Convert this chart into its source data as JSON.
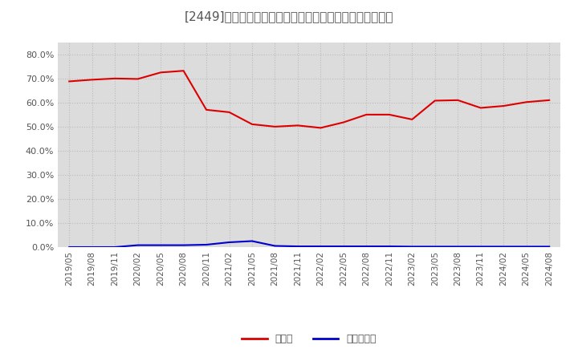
{
  "title": "[2449]　現顔金、有利子負債の総資産に対する比率の推移",
  "x_labels": [
    "2019/05",
    "2019/08",
    "2019/11",
    "2020/02",
    "2020/05",
    "2020/08",
    "2020/11",
    "2021/02",
    "2021/05",
    "2021/08",
    "2021/11",
    "2022/02",
    "2022/05",
    "2022/08",
    "2022/11",
    "2023/02",
    "2023/05",
    "2023/08",
    "2023/11",
    "2024/02",
    "2024/05",
    "2024/08"
  ],
  "cash_ratio": [
    0.688,
    0.695,
    0.7,
    0.698,
    0.725,
    0.732,
    0.57,
    0.56,
    0.51,
    0.5,
    0.505,
    0.495,
    0.518,
    0.55,
    0.55,
    0.53,
    0.608,
    0.61,
    0.578,
    0.586,
    0.602,
    0.61
  ],
  "debt_ratio": [
    0.0,
    0.0,
    0.0,
    0.008,
    0.008,
    0.008,
    0.01,
    0.02,
    0.025,
    0.005,
    0.003,
    0.003,
    0.003,
    0.003,
    0.003,
    0.002,
    0.002,
    0.002,
    0.002,
    0.002,
    0.002,
    0.002
  ],
  "cash_color": "#dd0000",
  "debt_color": "#0000cc",
  "background_color": "#ffffff",
  "plot_bg_color": "#dcdcdc",
  "grid_color": "#bbbbbb",
  "text_color": "#555555",
  "ylim": [
    0.0,
    0.85
  ],
  "yticks": [
    0.0,
    0.1,
    0.2,
    0.3,
    0.4,
    0.5,
    0.6,
    0.7,
    0.8
  ],
  "legend_cash": "現顔金",
  "legend_debt": "有利子負債",
  "title_fontsize": 11,
  "tick_fontsize": 7.5,
  "legend_fontsize": 9
}
